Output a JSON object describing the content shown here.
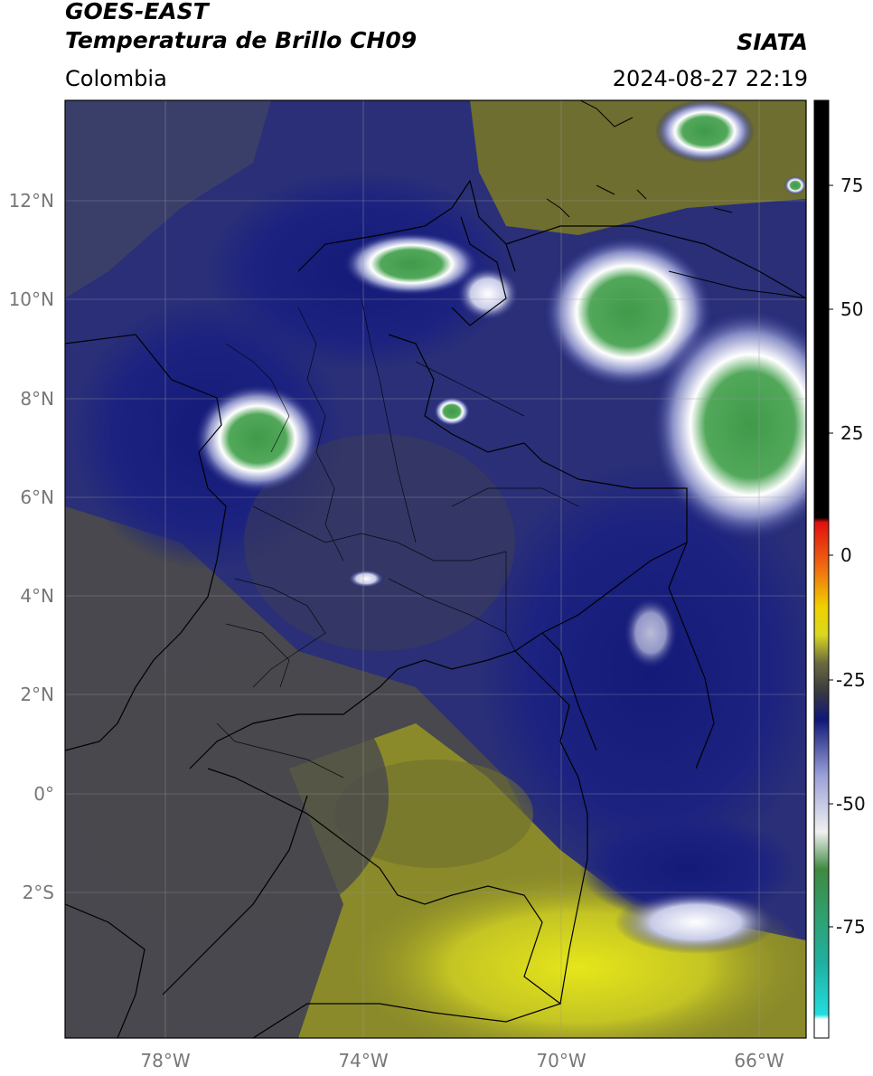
{
  "header": {
    "satellite": "GOES-EAST",
    "product": "Temperatura de Brillo CH09",
    "region": "Colombia",
    "organization": "SIATA",
    "timestamp": "2024-08-27 22:19"
  },
  "map": {
    "lat_labels": [
      "12°N",
      "10°N",
      "8°N",
      "6°N",
      "4°N",
      "2°N",
      "0°",
      "2°S"
    ],
    "lon_labels": [
      "78°W",
      "74°W",
      "70°W",
      "66°W"
    ]
  },
  "colorbar": {
    "ticks": [
      "75",
      "50",
      "25",
      "0",
      "-25",
      "-50",
      "-75"
    ]
  },
  "colors": {
    "navy": "#1a1f7a",
    "gray": "#4a4a50",
    "olive": "#8a8a2a",
    "yellow": "#d8d820",
    "green": "#3f9a4a",
    "white": "#ffffff"
  }
}
